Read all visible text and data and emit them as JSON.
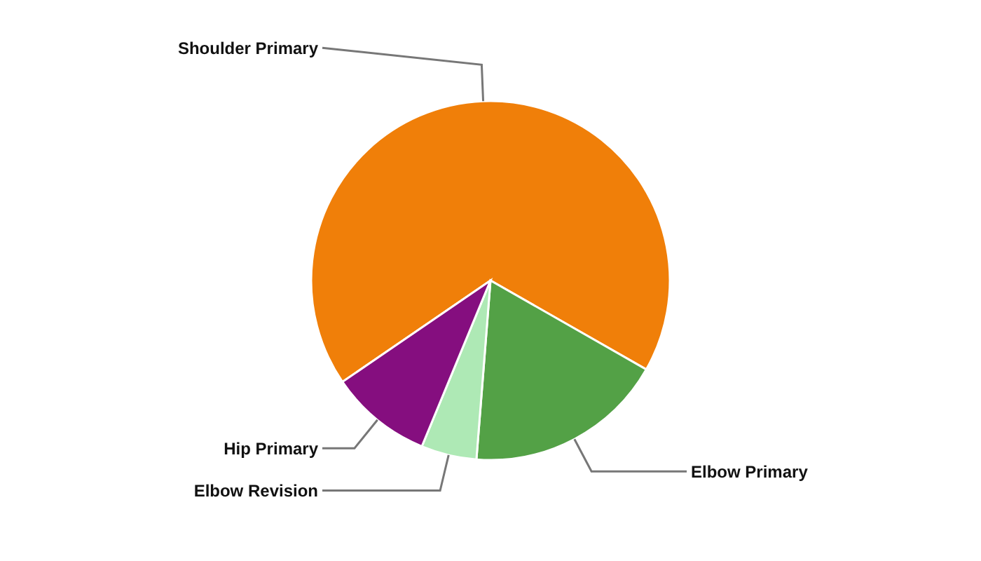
{
  "chart_data": {
    "type": "pie",
    "categories": [
      "Shoulder Primary",
      "Elbow Primary",
      "Elbow Revision",
      "Hip Primary"
    ],
    "values": [
      67.8,
      18.0,
      5.0,
      9.2
    ],
    "colors": [
      "#f07f09",
      "#53a146",
      "#aee9b5",
      "#850e7f"
    ]
  }
}
